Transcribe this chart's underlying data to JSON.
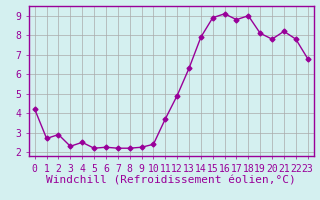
{
  "x": [
    0,
    1,
    2,
    3,
    4,
    5,
    6,
    7,
    8,
    9,
    10,
    11,
    12,
    13,
    14,
    15,
    16,
    17,
    18,
    19,
    20,
    21,
    22,
    23
  ],
  "y": [
    4.2,
    2.7,
    2.9,
    2.3,
    2.5,
    2.2,
    2.25,
    2.2,
    2.2,
    2.25,
    2.4,
    3.7,
    4.9,
    6.3,
    7.9,
    8.9,
    9.1,
    8.8,
    9.0,
    8.1,
    7.8,
    8.2,
    7.8,
    6.8
  ],
  "line_color": "#990099",
  "marker_color": "#990099",
  "bg_color": "#d4f0f0",
  "grid_color": "#aaaaaa",
  "xlabel": "Windchill (Refroidissement éolien,°C)",
  "xlim": [
    -0.5,
    23.5
  ],
  "ylim": [
    1.8,
    9.5
  ],
  "yticks": [
    2,
    3,
    4,
    5,
    6,
    7,
    8,
    9
  ],
  "xticks": [
    0,
    1,
    2,
    3,
    4,
    5,
    6,
    7,
    8,
    9,
    10,
    11,
    12,
    13,
    14,
    15,
    16,
    17,
    18,
    19,
    20,
    21,
    22,
    23
  ],
  "xtick_labels": [
    "0",
    "1",
    "2",
    "3",
    "4",
    "5",
    "6",
    "7",
    "8",
    "9",
    "10",
    "11",
    "12",
    "13",
    "14",
    "15",
    "16",
    "17",
    "18",
    "19",
    "20",
    "21",
    "22",
    "23"
  ],
  "title_color": "#ffffff",
  "axis_color": "#990099",
  "spine_color": "#990099",
  "tick_label_fontsize": 7,
  "xlabel_fontsize": 8
}
